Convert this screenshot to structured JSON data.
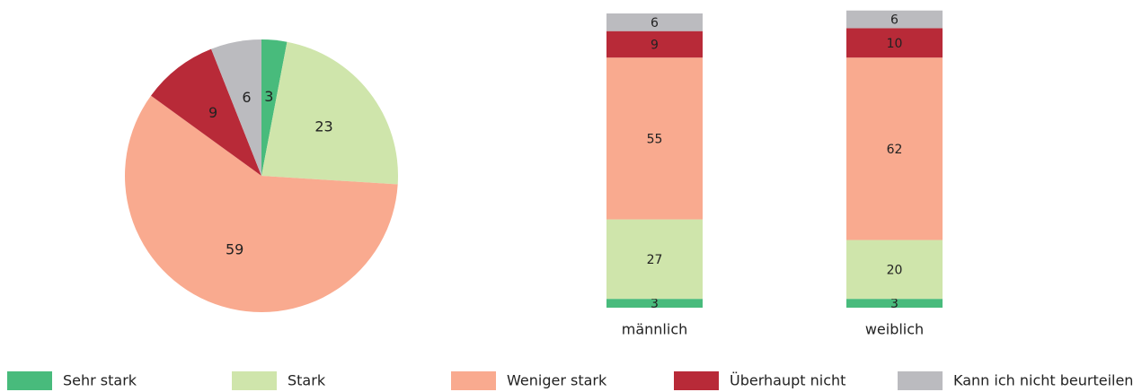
{
  "chart_data": [
    {
      "type": "pie",
      "values": [
        3,
        23,
        59,
        9,
        6
      ],
      "colors": [
        "#48bb7c",
        "#cfe5ab",
        "#f9aa8f",
        "#b82a38",
        "#bbbbbf"
      ]
    },
    {
      "type": "stacked_bar",
      "categories": [
        "männlich",
        "weiblich"
      ],
      "series": [
        {
          "name": "Sehr stark",
          "color": "#48bb7c",
          "values": [
            3,
            3
          ]
        },
        {
          "name": "Stark",
          "color": "#cfe5ab",
          "values": [
            27,
            20
          ]
        },
        {
          "name": "Weniger stark",
          "color": "#f9aa8f",
          "values": [
            55,
            62
          ]
        },
        {
          "name": "Überhaupt nicht",
          "color": "#b82a38",
          "values": [
            9,
            10
          ]
        },
        {
          "name": "Kann ich nicht beurteilen",
          "color": "#bbbbbf",
          "values": [
            6,
            6
          ]
        }
      ]
    }
  ]
}
